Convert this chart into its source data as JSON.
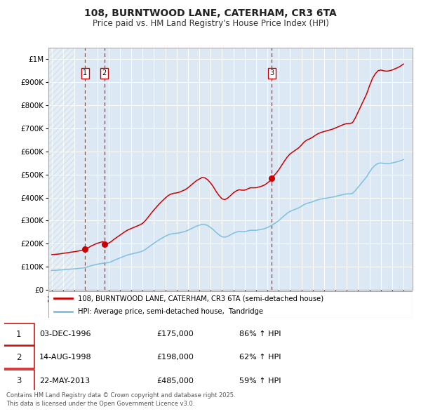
{
  "title": "108, BURNTWOOD LANE, CATERHAM, CR3 6TA",
  "subtitle": "Price paid vs. HM Land Registry's House Price Index (HPI)",
  "background_color": "#ffffff",
  "plot_bg_color": "#dce9f5",
  "grid_color": "#ffffff",
  "ylim": [
    0,
    1050000
  ],
  "yticks": [
    0,
    100000,
    200000,
    300000,
    400000,
    500000,
    600000,
    700000,
    800000,
    900000,
    1000000
  ],
  "ytick_labels": [
    "£0",
    "£100K",
    "£200K",
    "£300K",
    "£400K",
    "£500K",
    "£600K",
    "£700K",
    "£800K",
    "£900K",
    "£1M"
  ],
  "xlim_start": 1993.7,
  "xlim_end": 2025.8,
  "xtick_years": [
    1994,
    1995,
    1996,
    1997,
    1998,
    1999,
    2000,
    2001,
    2002,
    2003,
    2004,
    2005,
    2006,
    2007,
    2008,
    2009,
    2010,
    2011,
    2012,
    2013,
    2014,
    2015,
    2016,
    2017,
    2018,
    2019,
    2020,
    2021,
    2022,
    2023,
    2024,
    2025
  ],
  "sale_dates": [
    1996.92,
    1998.62,
    2013.39
  ],
  "sale_prices": [
    175000,
    198000,
    485000
  ],
  "sale_labels": [
    "1",
    "2",
    "3"
  ],
  "hpi_color": "#7fbfdf",
  "price_color": "#cc0000",
  "vline_color": "#cc0000",
  "legend_label_price": "108, BURNTWOOD LANE, CATERHAM, CR3 6TA (semi-detached house)",
  "legend_label_hpi": "HPI: Average price, semi-detached house,  Tandridge",
  "table_rows": [
    {
      "num": "1",
      "date": "03-DEC-1996",
      "price": "£175,000",
      "change": "86% ↑ HPI"
    },
    {
      "num": "2",
      "date": "14-AUG-1998",
      "price": "£198,000",
      "change": "62% ↑ HPI"
    },
    {
      "num": "3",
      "date": "22-MAY-2013",
      "price": "£485,000",
      "change": "59% ↑ HPI"
    }
  ],
  "footer": "Contains HM Land Registry data © Crown copyright and database right 2025.\nThis data is licensed under the Open Government Licence v3.0.",
  "hpi_data_x": [
    1994.0,
    1994.25,
    1994.5,
    1994.75,
    1995.0,
    1995.25,
    1995.5,
    1995.75,
    1996.0,
    1996.25,
    1996.5,
    1996.75,
    1997.0,
    1997.25,
    1997.5,
    1997.75,
    1998.0,
    1998.25,
    1998.5,
    1998.75,
    1999.0,
    1999.25,
    1999.5,
    1999.75,
    2000.0,
    2000.25,
    2000.5,
    2000.75,
    2001.0,
    2001.25,
    2001.5,
    2001.75,
    2002.0,
    2002.25,
    2002.5,
    2002.75,
    2003.0,
    2003.25,
    2003.5,
    2003.75,
    2004.0,
    2004.25,
    2004.5,
    2004.75,
    2005.0,
    2005.25,
    2005.5,
    2005.75,
    2006.0,
    2006.25,
    2006.5,
    2006.75,
    2007.0,
    2007.25,
    2007.5,
    2007.75,
    2008.0,
    2008.25,
    2008.5,
    2008.75,
    2009.0,
    2009.25,
    2009.5,
    2009.75,
    2010.0,
    2010.25,
    2010.5,
    2010.75,
    2011.0,
    2011.25,
    2011.5,
    2011.75,
    2012.0,
    2012.25,
    2012.5,
    2012.75,
    2013.0,
    2013.25,
    2013.5,
    2013.75,
    2014.0,
    2014.25,
    2014.5,
    2014.75,
    2015.0,
    2015.25,
    2015.5,
    2015.75,
    2016.0,
    2016.25,
    2016.5,
    2016.75,
    2017.0,
    2017.25,
    2017.5,
    2017.75,
    2018.0,
    2018.25,
    2018.5,
    2018.75,
    2019.0,
    2019.25,
    2019.5,
    2019.75,
    2020.0,
    2020.25,
    2020.5,
    2020.75,
    2021.0,
    2021.25,
    2021.5,
    2021.75,
    2022.0,
    2022.25,
    2022.5,
    2022.75,
    2023.0,
    2023.25,
    2023.5,
    2023.75,
    2024.0,
    2024.25,
    2024.5,
    2024.75,
    2025.0
  ],
  "hpi_data_y": [
    84000,
    84500,
    85000,
    86000,
    87000,
    88000,
    89000,
    90000,
    91000,
    92000,
    93500,
    95000,
    97000,
    101000,
    105000,
    108000,
    111000,
    113000,
    115000,
    116000,
    118000,
    122000,
    128000,
    133000,
    138000,
    143000,
    148000,
    152000,
    155000,
    158000,
    161000,
    164000,
    168000,
    175000,
    184000,
    193000,
    202000,
    210000,
    218000,
    225000,
    232000,
    238000,
    242000,
    244000,
    245000,
    247000,
    250000,
    253000,
    258000,
    264000,
    270000,
    276000,
    280000,
    284000,
    283000,
    278000,
    270000,
    260000,
    248000,
    238000,
    230000,
    228000,
    232000,
    238000,
    245000,
    250000,
    253000,
    252000,
    252000,
    255000,
    258000,
    258000,
    258000,
    260000,
    262000,
    265000,
    270000,
    276000,
    283000,
    291000,
    300000,
    311000,
    322000,
    332000,
    340000,
    345000,
    350000,
    355000,
    362000,
    370000,
    375000,
    378000,
    382000,
    387000,
    391000,
    394000,
    396000,
    398000,
    400000,
    402000,
    405000,
    408000,
    411000,
    414000,
    416000,
    416000,
    418000,
    430000,
    445000,
    460000,
    475000,
    490000,
    510000,
    528000,
    540000,
    548000,
    550000,
    548000,
    547000,
    548000,
    550000,
    553000,
    556000,
    560000,
    565000
  ]
}
